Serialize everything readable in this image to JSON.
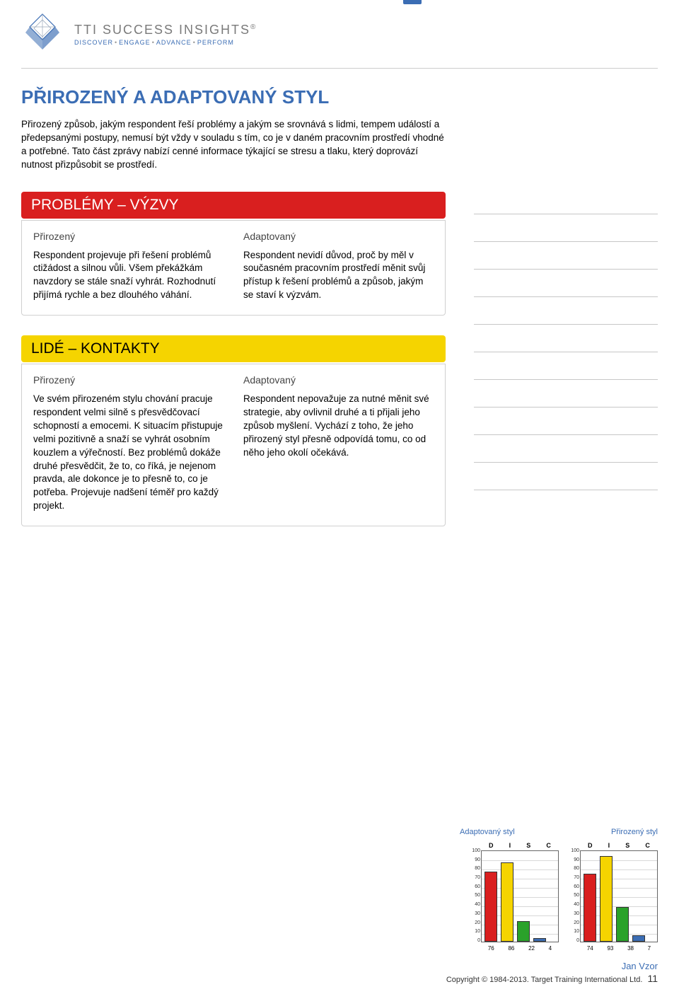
{
  "brand": {
    "name": "TTI SUCCESS INSIGHTS",
    "reg": "®",
    "tagline_parts": [
      "DISCOVER",
      "ENGAGE",
      "ADVANCE",
      "PERFORM"
    ]
  },
  "title": "PŘIROZENÝ A ADAPTOVANÝ STYL",
  "intro": "Přirozený způsob, jakým respondent řeší problémy a jakým se srovnává s lidmi, tempem událostí a předepsanými postupy, nemusí být vždy v souladu s tím, co je v daném pracovním prostředí vhodné a potřebné. Tato část zprávy nabízí cenné informace týkající se stresu a tlaku, který doprovází nutnost přizpůsobit se prostředí.",
  "sections": [
    {
      "bar_label": "PROBLÉMY – VÝZVY",
      "bar_class": "red",
      "left_label": "Přirozený",
      "left_body": "Respondent projevuje při řešení problémů ctižádost a silnou vůli. Všem překážkám navzdory se stále snaží vyhrát. Rozhodnutí přijímá rychle a bez dlouhého váhání.",
      "right_label": "Adaptovaný",
      "right_body": "Respondent nevidí důvod, proč by měl v současném pracovním prostředí měnit svůj přístup k řešení problémů a způsob, jakým se staví k výzvám."
    },
    {
      "bar_label": "LIDÉ – KONTAKTY",
      "bar_class": "yellow",
      "left_label": "Přirozený",
      "left_body": "Ve svém přirozeném stylu chování pracuje respondent velmi silně s přesvědčovací schopností a emocemi. K situacím přistupuje velmi pozitivně a snaží se vyhrát osobním kouzlem a výřečností. Bez problémů dokáže druhé přesvědčit, že to, co říká, je nejenom pravda, ale dokonce je to přesně to, co je potřeba. Projevuje nadšení téměř pro každý projekt.",
      "right_label": "Adaptovaný",
      "right_body": "Respondent nepovažuje za nutné měnit své strategie, aby ovlivnil druhé a ti přijali jeho způsob myšlení. Vychází z toho, že jeho přirozený styl přesně odpovídá tomu, co od něho jeho okolí očekává."
    }
  ],
  "side_lines_count": 11,
  "charts": {
    "label_adapted": "Adaptovaný styl",
    "label_natural": "Přirozený styl",
    "letters": [
      "D",
      "I",
      "S",
      "C"
    ],
    "ylim": [
      0,
      100
    ],
    "ytick_step": 10,
    "y_ticks": [
      100,
      90,
      80,
      70,
      60,
      50,
      40,
      30,
      20,
      10,
      0
    ],
    "bar_colors": [
      "#d91f1f",
      "#f5d400",
      "#2aa22a",
      "#3b6db4"
    ],
    "bar_border": "#333333",
    "grid_color": "#d8d8d8",
    "adapted_values": [
      76,
      86,
      22,
      4
    ],
    "natural_values": [
      74,
      93,
      38,
      7
    ]
  },
  "footer": {
    "name": "Jan Vzor",
    "copyright": "Copyright © 1984-2013. Target Training International Ltd.",
    "page": "11"
  }
}
